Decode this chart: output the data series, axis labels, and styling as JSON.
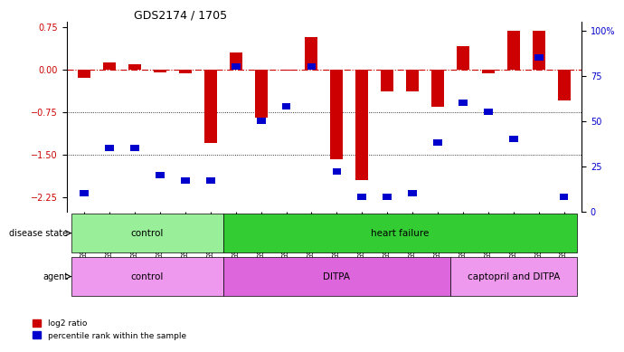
{
  "title": "GDS2174 / 1705",
  "samples": [
    "GSM111772",
    "GSM111823",
    "GSM111824",
    "GSM111825",
    "GSM111826",
    "GSM111827",
    "GSM111828",
    "GSM111829",
    "GSM111861",
    "GSM111863",
    "GSM111864",
    "GSM111865",
    "GSM111866",
    "GSM111867",
    "GSM111869",
    "GSM111870",
    "GSM112038",
    "GSM112039",
    "GSM112040",
    "GSM112041"
  ],
  "log2_ratio": [
    -0.15,
    0.13,
    0.1,
    -0.05,
    -0.07,
    -1.3,
    0.3,
    -0.85,
    -0.02,
    0.57,
    -1.58,
    -1.95,
    -0.38,
    -0.38,
    -0.65,
    0.42,
    -0.07,
    0.69,
    0.69,
    -0.55
  ],
  "percentile_rank": [
    10,
    35,
    35,
    20,
    17,
    17,
    80,
    50,
    58,
    80,
    22,
    8,
    8,
    10,
    38,
    60,
    55,
    40,
    85,
    8
  ],
  "ylim_left": [
    -2.5,
    0.85
  ],
  "ylim_right": [
    0,
    105
  ],
  "yticks_left": [
    0.75,
    0,
    -0.75,
    -1.5,
    -2.25
  ],
  "yticks_right": [
    100,
    75,
    50,
    25,
    0
  ],
  "bar_color": "#cc0000",
  "dot_color": "#0000cc",
  "hline_y": 0,
  "dotted_lines": [
    -0.75,
    -1.5
  ],
  "disease_state_groups": [
    {
      "label": "control",
      "start": 0,
      "end": 6,
      "color": "#99ee99"
    },
    {
      "label": "heart failure",
      "start": 6,
      "end": 20,
      "color": "#33cc33"
    }
  ],
  "agent_groups": [
    {
      "label": "control",
      "start": 0,
      "end": 6,
      "color": "#ee99ee"
    },
    {
      "label": "DITPA",
      "start": 6,
      "end": 15,
      "color": "#dd66dd"
    },
    {
      "label": "captopril and DITPA",
      "start": 15,
      "end": 20,
      "color": "#ee99ee"
    }
  ],
  "legend_items": [
    {
      "label": "log2 ratio",
      "color": "#cc0000",
      "marker": "s"
    },
    {
      "label": "percentile rank within the sample",
      "color": "#0000cc",
      "marker": "s"
    }
  ]
}
